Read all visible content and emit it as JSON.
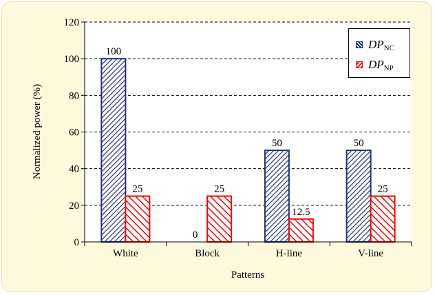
{
  "chart_data": {
    "type": "bar",
    "categories": [
      "White",
      "Block",
      "H-line",
      "V-line"
    ],
    "series": [
      {
        "name": "DP_NC",
        "label_main": "DP",
        "label_sub": "NC",
        "values": [
          100,
          0,
          50,
          50
        ],
        "value_labels": [
          "100",
          "0",
          "50",
          "50"
        ],
        "color": "#1f2f7a"
      },
      {
        "name": "DP_NP",
        "label_main": "DP",
        "label_sub": "NP",
        "values": [
          25,
          25,
          12.5,
          25
        ],
        "value_labels": [
          "25",
          "25",
          "12.5",
          "25"
        ],
        "color": "#ff0000"
      }
    ],
    "xlabel": "Patterns",
    "ylabel": "Normalized power (%)",
    "ylim": [
      0,
      120
    ],
    "yticks": [
      0,
      20,
      40,
      60,
      80,
      100,
      120
    ],
    "grid": true,
    "legend_position": "top-right",
    "background": "#fcf9dc"
  }
}
